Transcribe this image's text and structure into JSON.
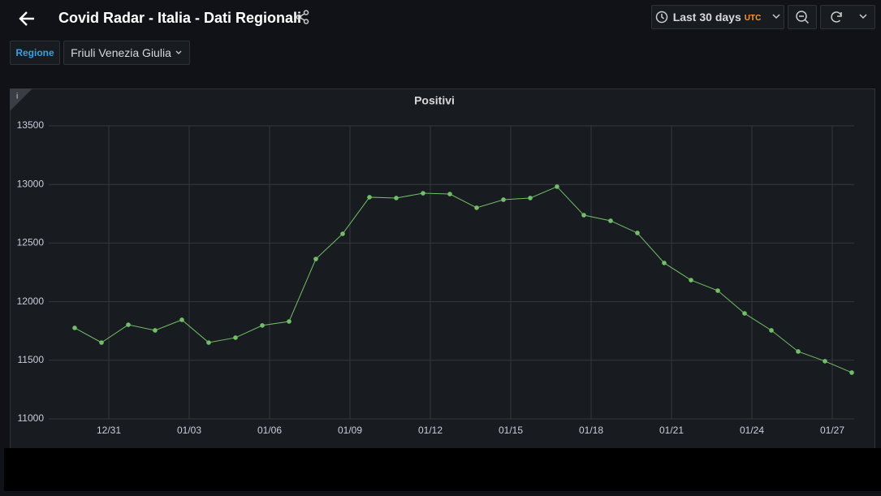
{
  "header": {
    "title": "Covid Radar - Italia - Dati Regionali",
    "time_range": "Last 30 days",
    "timezone": "UTC"
  },
  "variables": {
    "label": "Regione",
    "value": "Friuli Venezia Giulia"
  },
  "chart_data": {
    "type": "line",
    "title": "Positivi",
    "info": "i",
    "categories": [
      null,
      "12/31",
      null,
      null,
      "01/03",
      null,
      null,
      "01/06",
      null,
      null,
      "01/09",
      null,
      null,
      "01/12",
      null,
      null,
      "01/15",
      null,
      null,
      "01/18",
      null,
      null,
      "01/21",
      null,
      null,
      "01/24",
      null,
      null,
      "01/27",
      null
    ],
    "series": [
      {
        "name": "Positivi",
        "color": "#73bf69",
        "values": [
          11776,
          11651,
          11803,
          11755,
          11845,
          11651,
          11693,
          11797,
          11831,
          12364,
          12579,
          12891,
          12884,
          12925,
          12918,
          12801,
          12870,
          12884,
          12981,
          12738,
          12690,
          12586,
          12330,
          12184,
          12094,
          11900,
          11755,
          11575,
          11492,
          11395
        ]
      }
    ],
    "ylim": [
      11000,
      13500
    ],
    "yticks": [
      11000,
      11500,
      12000,
      12500,
      13000,
      13500
    ],
    "grid": true
  }
}
